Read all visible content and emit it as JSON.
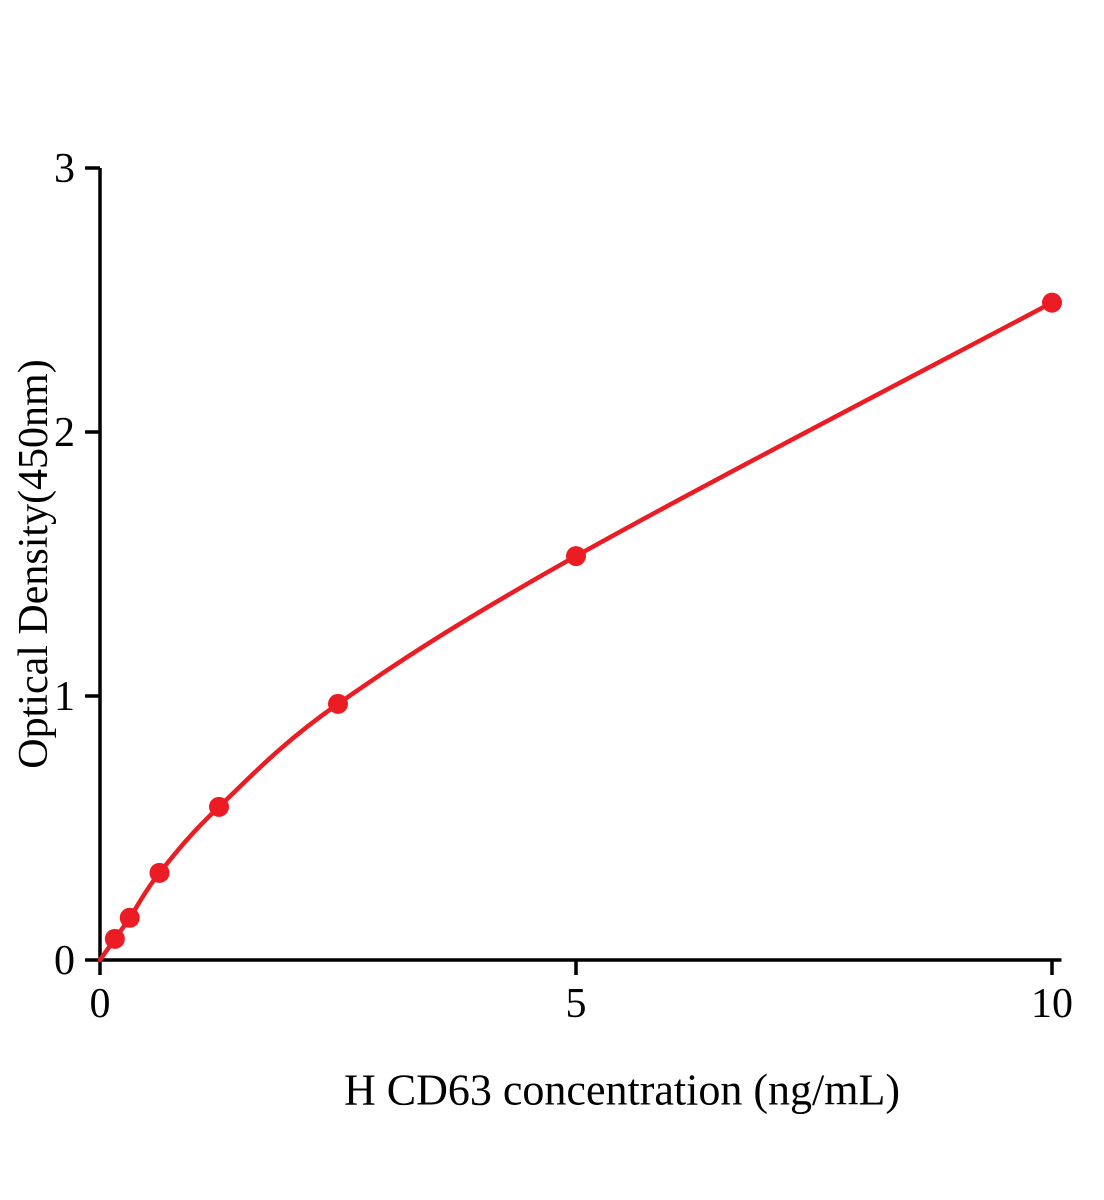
{
  "chart_data": {
    "type": "scatter",
    "title": "",
    "xlabel": "H CD63 concentration (ng/mL)",
    "ylabel": "Optical Density(450nm)",
    "x": [
      0.156,
      0.3125,
      0.625,
      1.25,
      2.5,
      5,
      10
    ],
    "y": [
      0.08,
      0.16,
      0.33,
      0.58,
      0.97,
      1.53,
      2.49
    ],
    "curve_start": {
      "x": 0,
      "y": 0
    },
    "xlim": [
      0,
      10.1
    ],
    "ylim": [
      0,
      3
    ],
    "xticks": [
      0,
      5,
      10
    ],
    "yticks": [
      0,
      1,
      2,
      3
    ],
    "grid": false,
    "legend_position": "none",
    "line_color": "#EC1C24",
    "marker_color": "#EC1C24",
    "axis_color": "#000000"
  }
}
